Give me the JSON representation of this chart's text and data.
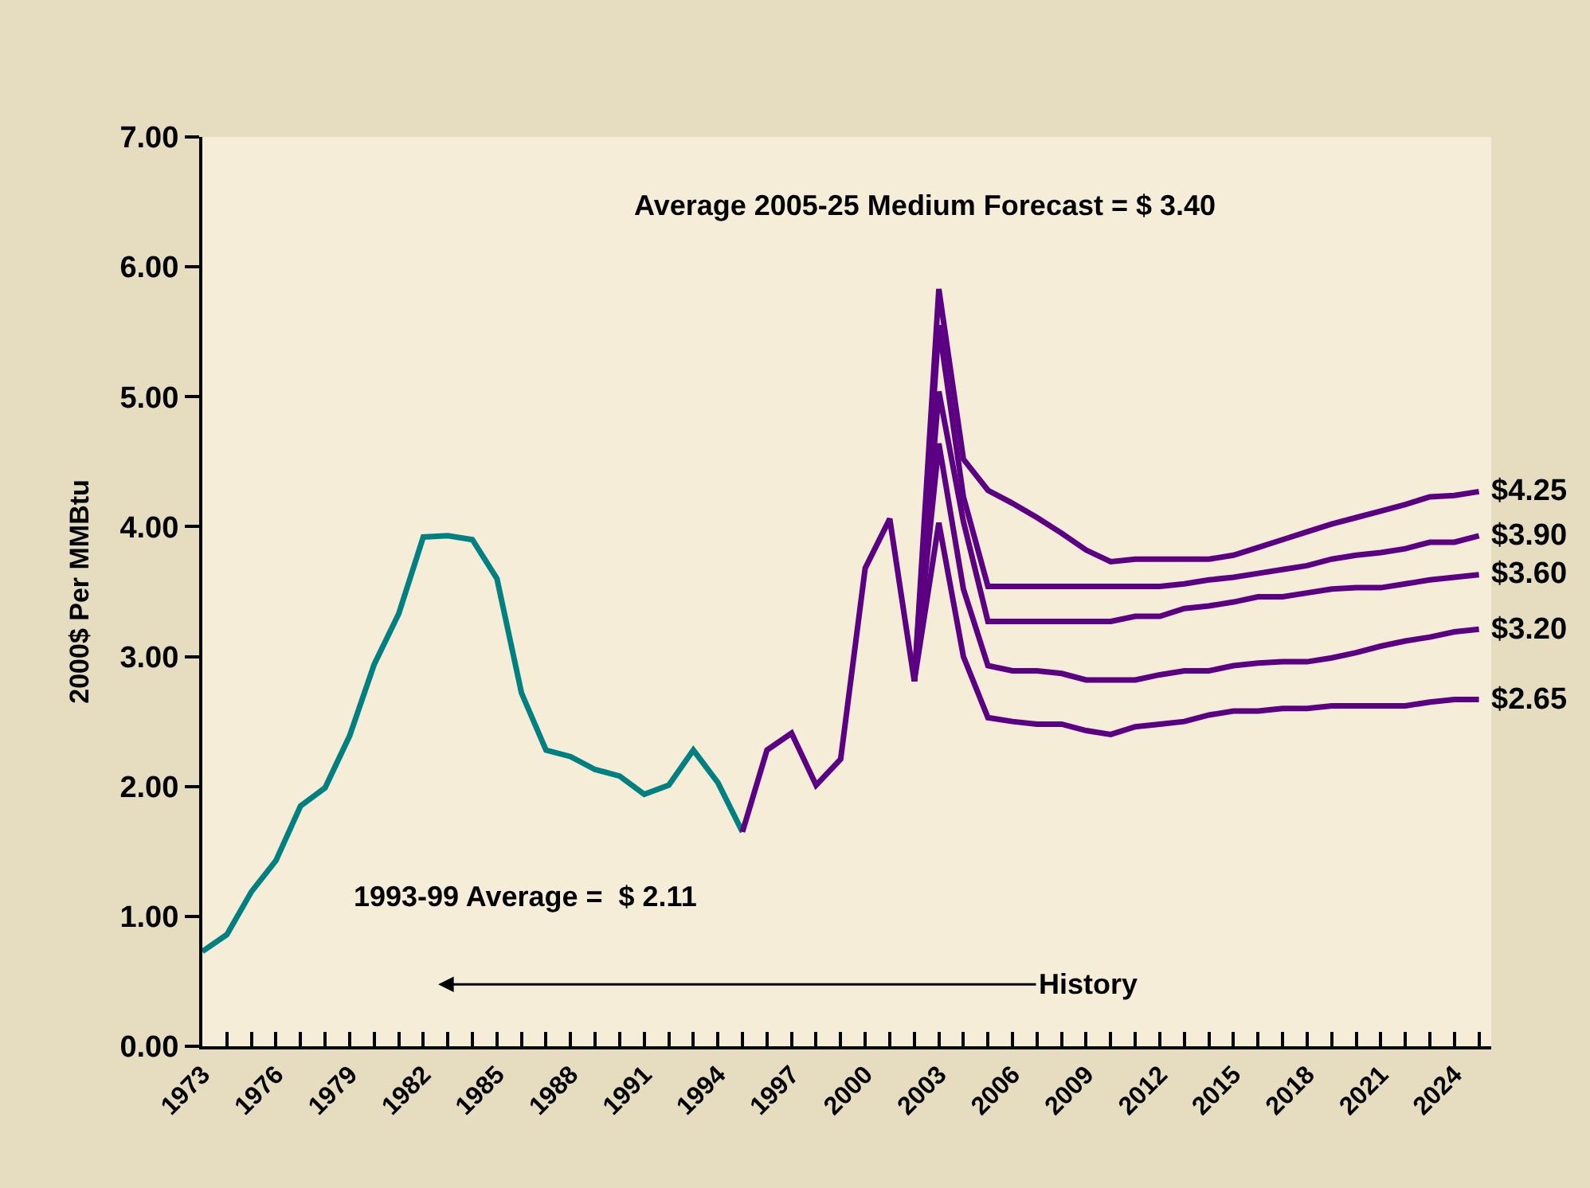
{
  "chart_data": {
    "type": "line",
    "ylabel": "2000$ Per MMBtu",
    "series": [
      {
        "color": "#008080",
        "x": [
          1973,
          1974,
          1975,
          1976,
          1977,
          1978,
          1979,
          1980,
          1981,
          1982,
          1983,
          1984,
          1985,
          1986,
          1987,
          1988,
          1989,
          1990,
          1991,
          1992,
          1993,
          1994,
          1995
        ],
        "values": [
          0.73,
          0.86,
          1.19,
          1.43,
          1.85,
          1.99,
          2.39,
          2.94,
          3.33,
          3.92,
          3.93,
          3.9,
          3.6,
          2.72,
          2.28,
          2.23,
          2.13,
          2.08,
          1.94,
          2.01,
          2.28,
          2.03,
          1.65
        ]
      },
      {
        "color": "#5b0082",
        "x": [
          1995,
          1996,
          1997,
          1998,
          1999,
          2000,
          2001,
          2002
        ],
        "values": [
          1.65,
          2.28,
          2.41,
          2.01,
          2.21,
          3.68,
          4.06,
          2.81
        ]
      },
      {
        "name": "$4.25",
        "color": "#5b0082",
        "x": [
          2002,
          2003,
          2004,
          2005,
          2006,
          2007,
          2008,
          2009,
          2010,
          2011,
          2012,
          2013,
          2014,
          2015,
          2016,
          2017,
          2018,
          2019,
          2020,
          2021,
          2022,
          2023,
          2024,
          2025
        ],
        "values": [
          2.81,
          5.83,
          4.52,
          4.28,
          4.18,
          4.07,
          3.95,
          3.82,
          3.73,
          3.75,
          3.75,
          3.75,
          3.75,
          3.78,
          3.84,
          3.9,
          3.96,
          4.02,
          4.07,
          4.12,
          4.17,
          4.23,
          4.24,
          4.27
        ]
      },
      {
        "name": "$3.90",
        "color": "#5b0082",
        "x": [
          2002,
          2003,
          2004,
          2005,
          2006,
          2007,
          2008,
          2009,
          2010,
          2011,
          2012,
          2013,
          2014,
          2015,
          2016,
          2017,
          2018,
          2019,
          2020,
          2021,
          2022,
          2023,
          2024,
          2025
        ],
        "values": [
          2.81,
          5.55,
          4.23,
          3.54,
          3.54,
          3.54,
          3.54,
          3.54,
          3.54,
          3.54,
          3.54,
          3.56,
          3.59,
          3.61,
          3.64,
          3.67,
          3.7,
          3.75,
          3.78,
          3.8,
          3.83,
          3.88,
          3.88,
          3.93
        ]
      },
      {
        "name": "$3.60",
        "color": "#5b0082",
        "x": [
          2002,
          2003,
          2004,
          2005,
          2006,
          2007,
          2008,
          2009,
          2010,
          2011,
          2012,
          2013,
          2014,
          2015,
          2016,
          2017,
          2018,
          2019,
          2020,
          2021,
          2022,
          2023,
          2024,
          2025
        ],
        "values": [
          2.81,
          5.04,
          4.04,
          3.27,
          3.27,
          3.27,
          3.27,
          3.27,
          3.27,
          3.31,
          3.31,
          3.37,
          3.39,
          3.42,
          3.46,
          3.46,
          3.49,
          3.52,
          3.53,
          3.53,
          3.56,
          3.59,
          3.61,
          3.63
        ]
      },
      {
        "name": "$3.20",
        "color": "#5b0082",
        "x": [
          2002,
          2003,
          2004,
          2005,
          2006,
          2007,
          2008,
          2009,
          2010,
          2011,
          2012,
          2013,
          2014,
          2015,
          2016,
          2017,
          2018,
          2019,
          2020,
          2021,
          2022,
          2023,
          2024,
          2025
        ],
        "values": [
          2.81,
          4.64,
          3.52,
          2.93,
          2.89,
          2.89,
          2.87,
          2.82,
          2.82,
          2.82,
          2.86,
          2.89,
          2.89,
          2.93,
          2.95,
          2.96,
          2.96,
          2.99,
          3.03,
          3.08,
          3.12,
          3.15,
          3.19,
          3.21
        ]
      },
      {
        "name": "$2.65",
        "color": "#5b0082",
        "x": [
          2002,
          2003,
          2004,
          2005,
          2006,
          2007,
          2008,
          2009,
          2010,
          2011,
          2012,
          2013,
          2014,
          2015,
          2016,
          2017,
          2018,
          2019,
          2020,
          2021,
          2022,
          2023,
          2024,
          2025
        ],
        "values": [
          2.81,
          4.03,
          3.0,
          2.53,
          2.5,
          2.48,
          2.48,
          2.43,
          2.4,
          2.46,
          2.48,
          2.5,
          2.55,
          2.58,
          2.58,
          2.6,
          2.6,
          2.62,
          2.62,
          2.62,
          2.62,
          2.65,
          2.67,
          2.67
        ]
      }
    ],
    "annotations": [
      "Average 2005-25 Medium Forecast = $ 3.40",
      "1993-99 Average =  $ 2.11",
      "History"
    ],
    "xlim": [
      1973,
      2025.5
    ],
    "xticks": [
      1973,
      {
        "value": 1974,
        "label": null
      },
      {
        "value": 1975,
        "label": null
      },
      1976,
      {
        "value": 1977,
        "label": null
      },
      {
        "value": 1978,
        "label": null
      },
      1979,
      {
        "value": 1980,
        "label": null
      },
      {
        "value": 1981,
        "label": null
      },
      1982,
      {
        "value": 1983,
        "label": null
      },
      {
        "value": 1984,
        "label": null
      },
      1985,
      {
        "value": 1986,
        "label": null
      },
      {
        "value": 1987,
        "label": null
      },
      1988,
      {
        "value": 1989,
        "label": null
      },
      {
        "value": 1990,
        "label": null
      },
      1991,
      {
        "value": 1992,
        "label": null
      },
      {
        "value": 1993,
        "label": null
      },
      1994,
      {
        "value": 1995,
        "label": null
      },
      {
        "value": 1996,
        "label": null
      },
      1997,
      {
        "value": 1998,
        "label": null
      },
      {
        "value": 1999,
        "label": null
      },
      2000,
      {
        "value": 2001,
        "label": null
      },
      {
        "value": 2002,
        "label": null
      },
      2003,
      {
        "value": 2004,
        "label": null
      },
      {
        "value": 2005,
        "label": null
      },
      2006,
      {
        "value": 2007,
        "label": null
      },
      {
        "value": 2008,
        "label": null
      },
      2009,
      {
        "value": 2010,
        "label": null
      },
      {
        "value": 2011,
        "label": null
      },
      2012,
      {
        "value": 2013,
        "label": null
      },
      {
        "value": 2014,
        "label": null
      },
      2015,
      {
        "value": 2016,
        "label": null
      },
      {
        "value": 2017,
        "label": null
      },
      2018,
      {
        "value": 2019,
        "label": null
      },
      {
        "value": 2020,
        "label": null
      },
      2021,
      {
        "value": 2022,
        "label": null
      },
      {
        "value": 2023,
        "label": null
      },
      2024,
      {
        "value": 2025,
        "label": null
      }
    ],
    "ylim": [
      0,
      7
    ],
    "yticks": [
      {
        "value": 0,
        "label": "0.00"
      },
      {
        "value": 1,
        "label": "1.00"
      },
      {
        "value": 2,
        "label": "2.00"
      },
      {
        "value": 3,
        "label": "3.00"
      },
      {
        "value": 4,
        "label": "4.00"
      },
      {
        "value": 5,
        "label": "5.00"
      },
      {
        "value": 6,
        "label": "6.00"
      },
      {
        "value": 7,
        "label": "7.00"
      }
    ],
    "grid": false,
    "legend": false,
    "marker": "none",
    "line_style": "solid"
  }
}
